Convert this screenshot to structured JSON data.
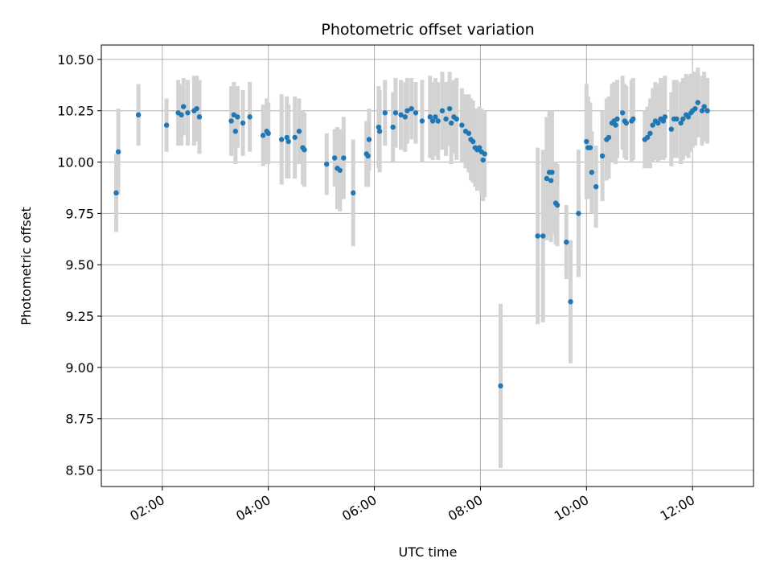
{
  "chart_data": {
    "type": "scatter",
    "title": "Photometric offset variation",
    "xlabel": "UTC time",
    "ylabel": "Photometric offset",
    "grid": true,
    "x_unit": "hours",
    "xlim": [
      0.85,
      13.15
    ],
    "ylim": [
      8.42,
      10.57
    ],
    "x_ticks": [
      {
        "value": 2,
        "label": "02:00"
      },
      {
        "value": 4,
        "label": "04:00"
      },
      {
        "value": 6,
        "label": "06:00"
      },
      {
        "value": 8,
        "label": "08:00"
      },
      {
        "value": 10,
        "label": "10:00"
      },
      {
        "value": 12,
        "label": "12:00"
      }
    ],
    "y_ticks": [
      {
        "value": 8.5,
        "label": "8.50"
      },
      {
        "value": 8.75,
        "label": "8.75"
      },
      {
        "value": 9.0,
        "label": "9.00"
      },
      {
        "value": 9.25,
        "label": "9.25"
      },
      {
        "value": 9.5,
        "label": "9.50"
      },
      {
        "value": 9.75,
        "label": "9.75"
      },
      {
        "value": 10.0,
        "label": "10.00"
      },
      {
        "value": 10.25,
        "label": "10.25"
      },
      {
        "value": 10.5,
        "label": "10.50"
      }
    ],
    "marker_color": "#1f77b4",
    "errorbar_color": "#d3d3d3",
    "series": [
      {
        "name": "offset",
        "points": [
          [
            1.13,
            9.85,
            0.19
          ],
          [
            1.17,
            10.05,
            0.21
          ],
          [
            1.55,
            10.23,
            0.15
          ],
          [
            2.08,
            10.18,
            0.13
          ],
          [
            2.3,
            10.24,
            0.16
          ],
          [
            2.36,
            10.23,
            0.15
          ],
          [
            2.4,
            10.27,
            0.14
          ],
          [
            2.48,
            10.24,
            0.16
          ],
          [
            2.6,
            10.25,
            0.17
          ],
          [
            2.65,
            10.26,
            0.16
          ],
          [
            2.7,
            10.22,
            0.18
          ],
          [
            3.3,
            10.2,
            0.17
          ],
          [
            3.35,
            10.23,
            0.16
          ],
          [
            3.38,
            10.15,
            0.16
          ],
          [
            3.42,
            10.22,
            0.15
          ],
          [
            3.52,
            10.19,
            0.16
          ],
          [
            3.65,
            10.22,
            0.17
          ],
          [
            3.9,
            10.13,
            0.15
          ],
          [
            3.97,
            10.15,
            0.16
          ],
          [
            4.0,
            10.14,
            0.15
          ],
          [
            4.25,
            10.11,
            0.22
          ],
          [
            4.35,
            10.12,
            0.2
          ],
          [
            4.38,
            10.1,
            0.18
          ],
          [
            4.5,
            10.12,
            0.2
          ],
          [
            4.58,
            10.15,
            0.16
          ],
          [
            4.65,
            10.07,
            0.18
          ],
          [
            4.68,
            10.06,
            0.18
          ],
          [
            5.1,
            9.99,
            0.15
          ],
          [
            5.25,
            10.02,
            0.14
          ],
          [
            5.3,
            9.97,
            0.2
          ],
          [
            5.35,
            9.96,
            0.2
          ],
          [
            5.42,
            10.02,
            0.2
          ],
          [
            5.6,
            9.85,
            0.26
          ],
          [
            5.85,
            10.04,
            0.16
          ],
          [
            5.88,
            10.03,
            0.15
          ],
          [
            5.9,
            10.11,
            0.15
          ],
          [
            6.08,
            10.17,
            0.2
          ],
          [
            6.1,
            10.15,
            0.2
          ],
          [
            6.2,
            10.24,
            0.16
          ],
          [
            6.35,
            10.17,
            0.17
          ],
          [
            6.4,
            10.24,
            0.17
          ],
          [
            6.5,
            10.23,
            0.17
          ],
          [
            6.58,
            10.22,
            0.17
          ],
          [
            6.62,
            10.25,
            0.16
          ],
          [
            6.7,
            10.26,
            0.15
          ],
          [
            6.78,
            10.24,
            0.15
          ],
          [
            6.9,
            10.2,
            0.2
          ],
          [
            7.05,
            10.22,
            0.2
          ],
          [
            7.1,
            10.2,
            0.19
          ],
          [
            7.15,
            10.22,
            0.19
          ],
          [
            7.2,
            10.2,
            0.19
          ],
          [
            7.28,
            10.25,
            0.19
          ],
          [
            7.35,
            10.21,
            0.18
          ],
          [
            7.42,
            10.26,
            0.18
          ],
          [
            7.45,
            10.19,
            0.2
          ],
          [
            7.5,
            10.22,
            0.18
          ],
          [
            7.55,
            10.21,
            0.2
          ],
          [
            7.65,
            10.18,
            0.18
          ],
          [
            7.72,
            10.15,
            0.18
          ],
          [
            7.78,
            10.14,
            0.19
          ],
          [
            7.82,
            10.11,
            0.2
          ],
          [
            7.86,
            10.1,
            0.2
          ],
          [
            7.9,
            10.07,
            0.19
          ],
          [
            7.94,
            10.06,
            0.2
          ],
          [
            7.98,
            10.07,
            0.2
          ],
          [
            8.02,
            10.05,
            0.21
          ],
          [
            8.05,
            10.01,
            0.2
          ],
          [
            8.08,
            10.04,
            0.21
          ],
          [
            8.38,
            8.91,
            0.4
          ],
          [
            9.08,
            9.64,
            0.43
          ],
          [
            9.18,
            9.64,
            0.42
          ],
          [
            9.25,
            9.92,
            0.3
          ],
          [
            9.3,
            9.95,
            0.3
          ],
          [
            9.35,
            9.95,
            0.3
          ],
          [
            9.33,
            9.91,
            0.3
          ],
          [
            9.42,
            9.8,
            0.2
          ],
          [
            9.45,
            9.79,
            0.2
          ],
          [
            9.62,
            9.61,
            0.18
          ],
          [
            9.7,
            9.32,
            0.3
          ],
          [
            9.85,
            9.75,
            0.31
          ],
          [
            10.0,
            10.1,
            0.28
          ],
          [
            10.03,
            10.07,
            0.25
          ],
          [
            10.07,
            10.07,
            0.22
          ],
          [
            10.1,
            9.95,
            0.2
          ],
          [
            10.18,
            9.88,
            0.2
          ],
          [
            10.3,
            10.03,
            0.22
          ],
          [
            10.38,
            10.11,
            0.2
          ],
          [
            10.42,
            10.12,
            0.2
          ],
          [
            10.48,
            10.19,
            0.19
          ],
          [
            10.52,
            10.2,
            0.19
          ],
          [
            10.55,
            10.18,
            0.19
          ],
          [
            10.58,
            10.21,
            0.19
          ],
          [
            10.68,
            10.24,
            0.18
          ],
          [
            10.72,
            10.2,
            0.18
          ],
          [
            10.75,
            10.19,
            0.18
          ],
          [
            10.85,
            10.2,
            0.2
          ],
          [
            10.88,
            10.21,
            0.2
          ],
          [
            11.1,
            10.11,
            0.14
          ],
          [
            11.15,
            10.12,
            0.15
          ],
          [
            11.2,
            10.14,
            0.17
          ],
          [
            11.25,
            10.18,
            0.18
          ],
          [
            11.3,
            10.2,
            0.19
          ],
          [
            11.35,
            10.19,
            0.19
          ],
          [
            11.4,
            10.21,
            0.2
          ],
          [
            11.45,
            10.2,
            0.19
          ],
          [
            11.48,
            10.22,
            0.2
          ],
          [
            11.6,
            10.16,
            0.18
          ],
          [
            11.65,
            10.21,
            0.19
          ],
          [
            11.7,
            10.21,
            0.19
          ],
          [
            11.78,
            10.19,
            0.2
          ],
          [
            11.82,
            10.21,
            0.2
          ],
          [
            11.88,
            10.23,
            0.2
          ],
          [
            11.92,
            10.22,
            0.2
          ],
          [
            11.97,
            10.24,
            0.19
          ],
          [
            12.0,
            10.25,
            0.18
          ],
          [
            12.05,
            10.26,
            0.18
          ],
          [
            12.1,
            10.29,
            0.17
          ],
          [
            12.18,
            10.25,
            0.17
          ],
          [
            12.22,
            10.27,
            0.17
          ],
          [
            12.28,
            10.25,
            0.16
          ]
        ]
      }
    ]
  }
}
